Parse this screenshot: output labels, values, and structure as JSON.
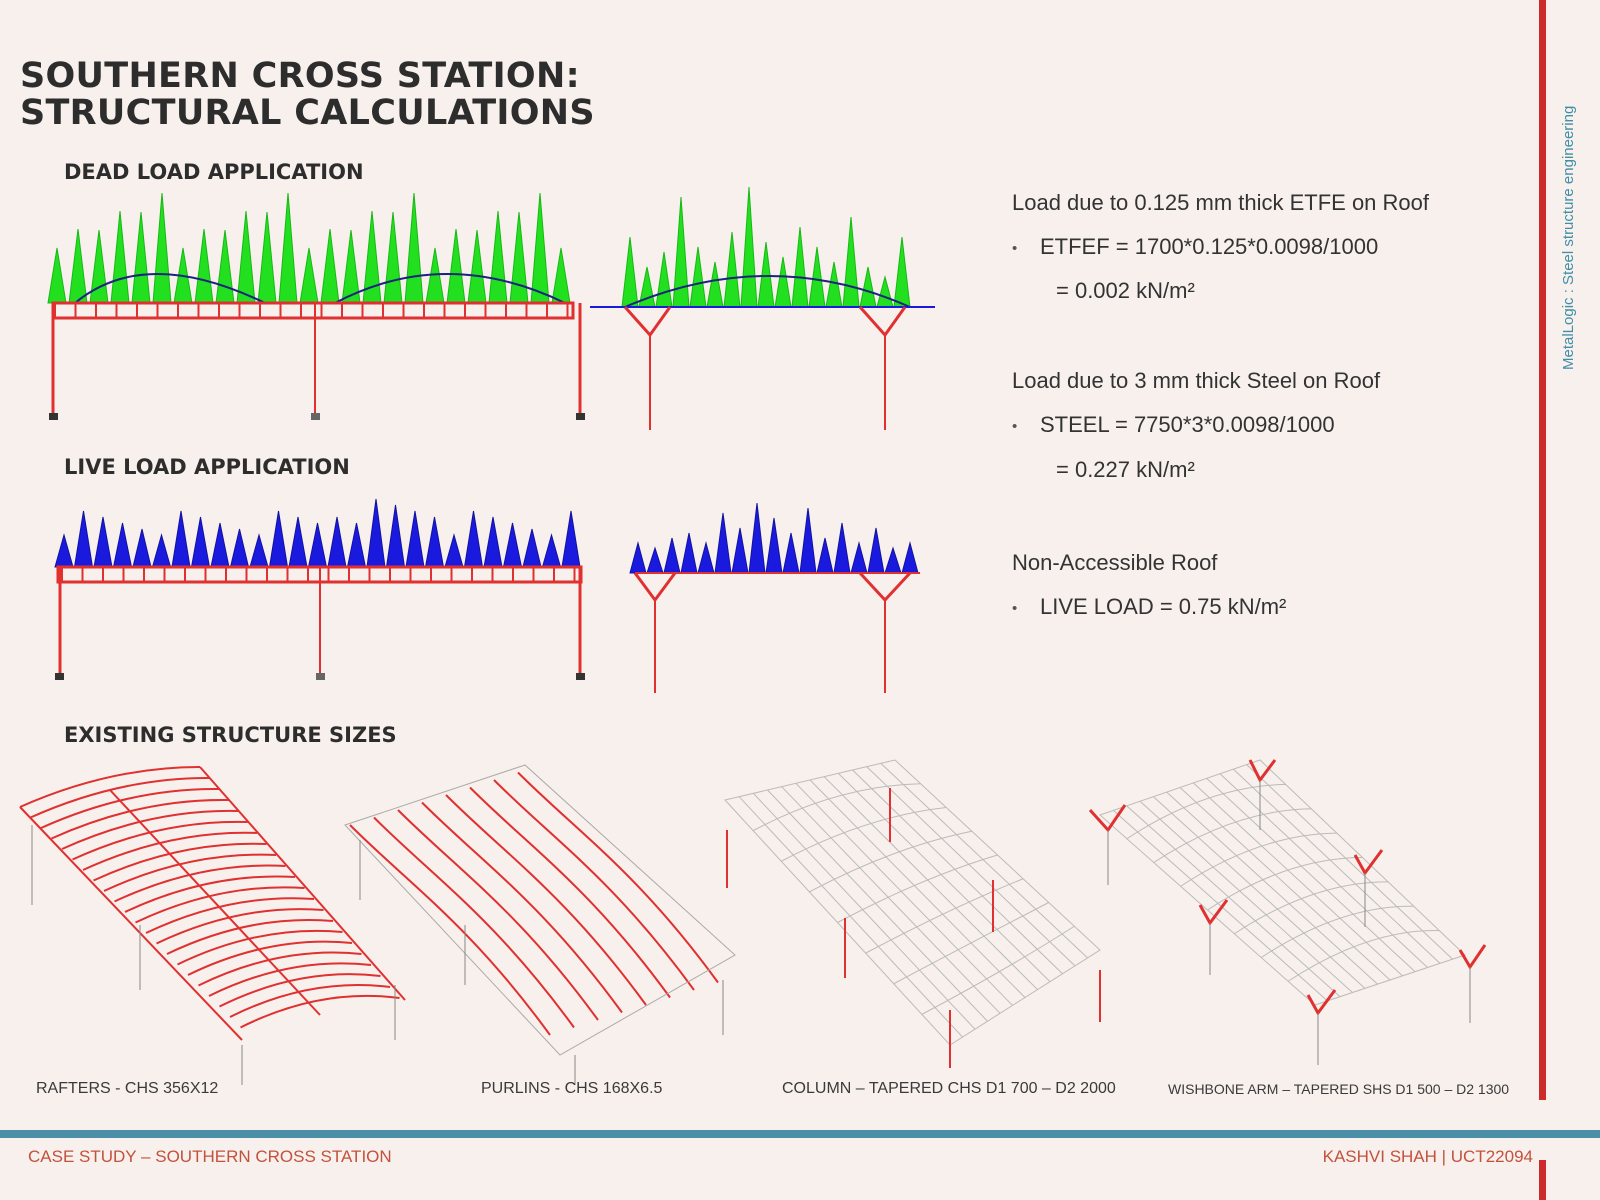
{
  "title": {
    "line1": "SOUTHERN CROSS STATION:",
    "line2": "STRUCTURAL CALCULATIONS"
  },
  "sections": {
    "dead_load": "DEAD LOAD APPLICATION",
    "live_load": "LIVE LOAD APPLICATION",
    "existing_sizes": "EXISTING STRUCTURE SIZES"
  },
  "calculations": {
    "etfe": {
      "heading": "Load due to 0.125 mm thick  ETFE on Roof",
      "formula": "ETFEF = 1700*0.125*0.0098/1000",
      "result": "= 0.002 kN/m²"
    },
    "steel": {
      "heading": "Load due to 3 mm thick  Steel on Roof",
      "formula": "STEEL = 7750*3*0.0098/1000",
      "result": "= 0.227 kN/m²"
    },
    "live": {
      "heading": "Non-Accessible Roof",
      "formula": "LIVE LOAD = 0.75 kN/m²"
    }
  },
  "structure_captions": [
    "RAFTERS - CHS 356X12",
    "PURLINS - CHS 168X6.5",
    "COLUMN – TAPERED CHS D1 700 – D2 2000",
    "WISHBONE ARM – TAPERED SHS D1 500 – D2 1300"
  ],
  "side_label": "MetalLogic : Steel structure engineering",
  "footer": {
    "left": "CASE STUDY – SOUTHERN CROSS STATION",
    "right": "KASHVI SHAH | UCT22094"
  },
  "colors": {
    "dead_load": "#22e01f",
    "live_load": "#1a1adf",
    "frame": "#e03030",
    "accent": "#cc2b2b",
    "teal": "#4a8fa6"
  }
}
